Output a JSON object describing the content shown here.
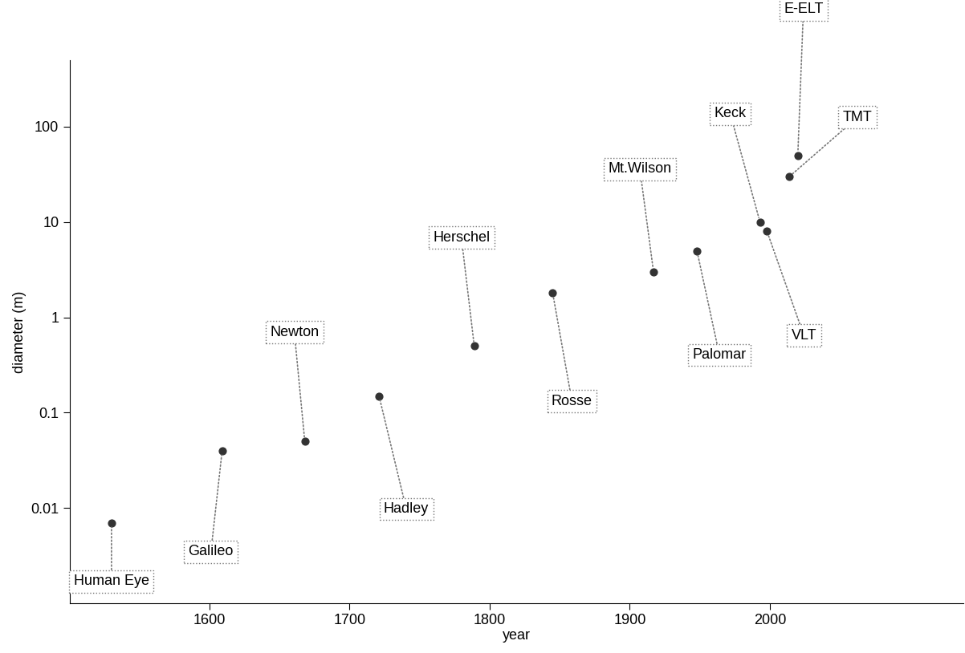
{
  "chart_data": {
    "type": "scatter",
    "xlabel": "year",
    "ylabel": "diameter (m)",
    "labels": [
      "Human Eye",
      "Galileo",
      "Newton",
      "Hadley",
      "Herschel",
      "Rosse",
      "Mt.Wilson",
      "Palomar",
      "Keck",
      "VLT",
      "E-ELT",
      "TMT"
    ],
    "x": [
      1530,
      1609,
      1668,
      1721,
      1789,
      1845,
      1917,
      1948,
      1993,
      1998,
      2020,
      2014
    ],
    "values": [
      0.007,
      0.04,
      0.05,
      0.15,
      0.5,
      1.8,
      3,
      5,
      10,
      8,
      50,
      30
    ],
    "color": "#333333",
    "marker": "o",
    "log": "y",
    "xlim": [
      1500,
      2138
    ],
    "ylim": [
      0.001,
      500
    ],
    "xticks": [
      1600,
      1700,
      1800,
      1900,
      2000
    ],
    "yticks": [
      0.01,
      0.1,
      1,
      10,
      100
    ],
    "grid": false
  }
}
